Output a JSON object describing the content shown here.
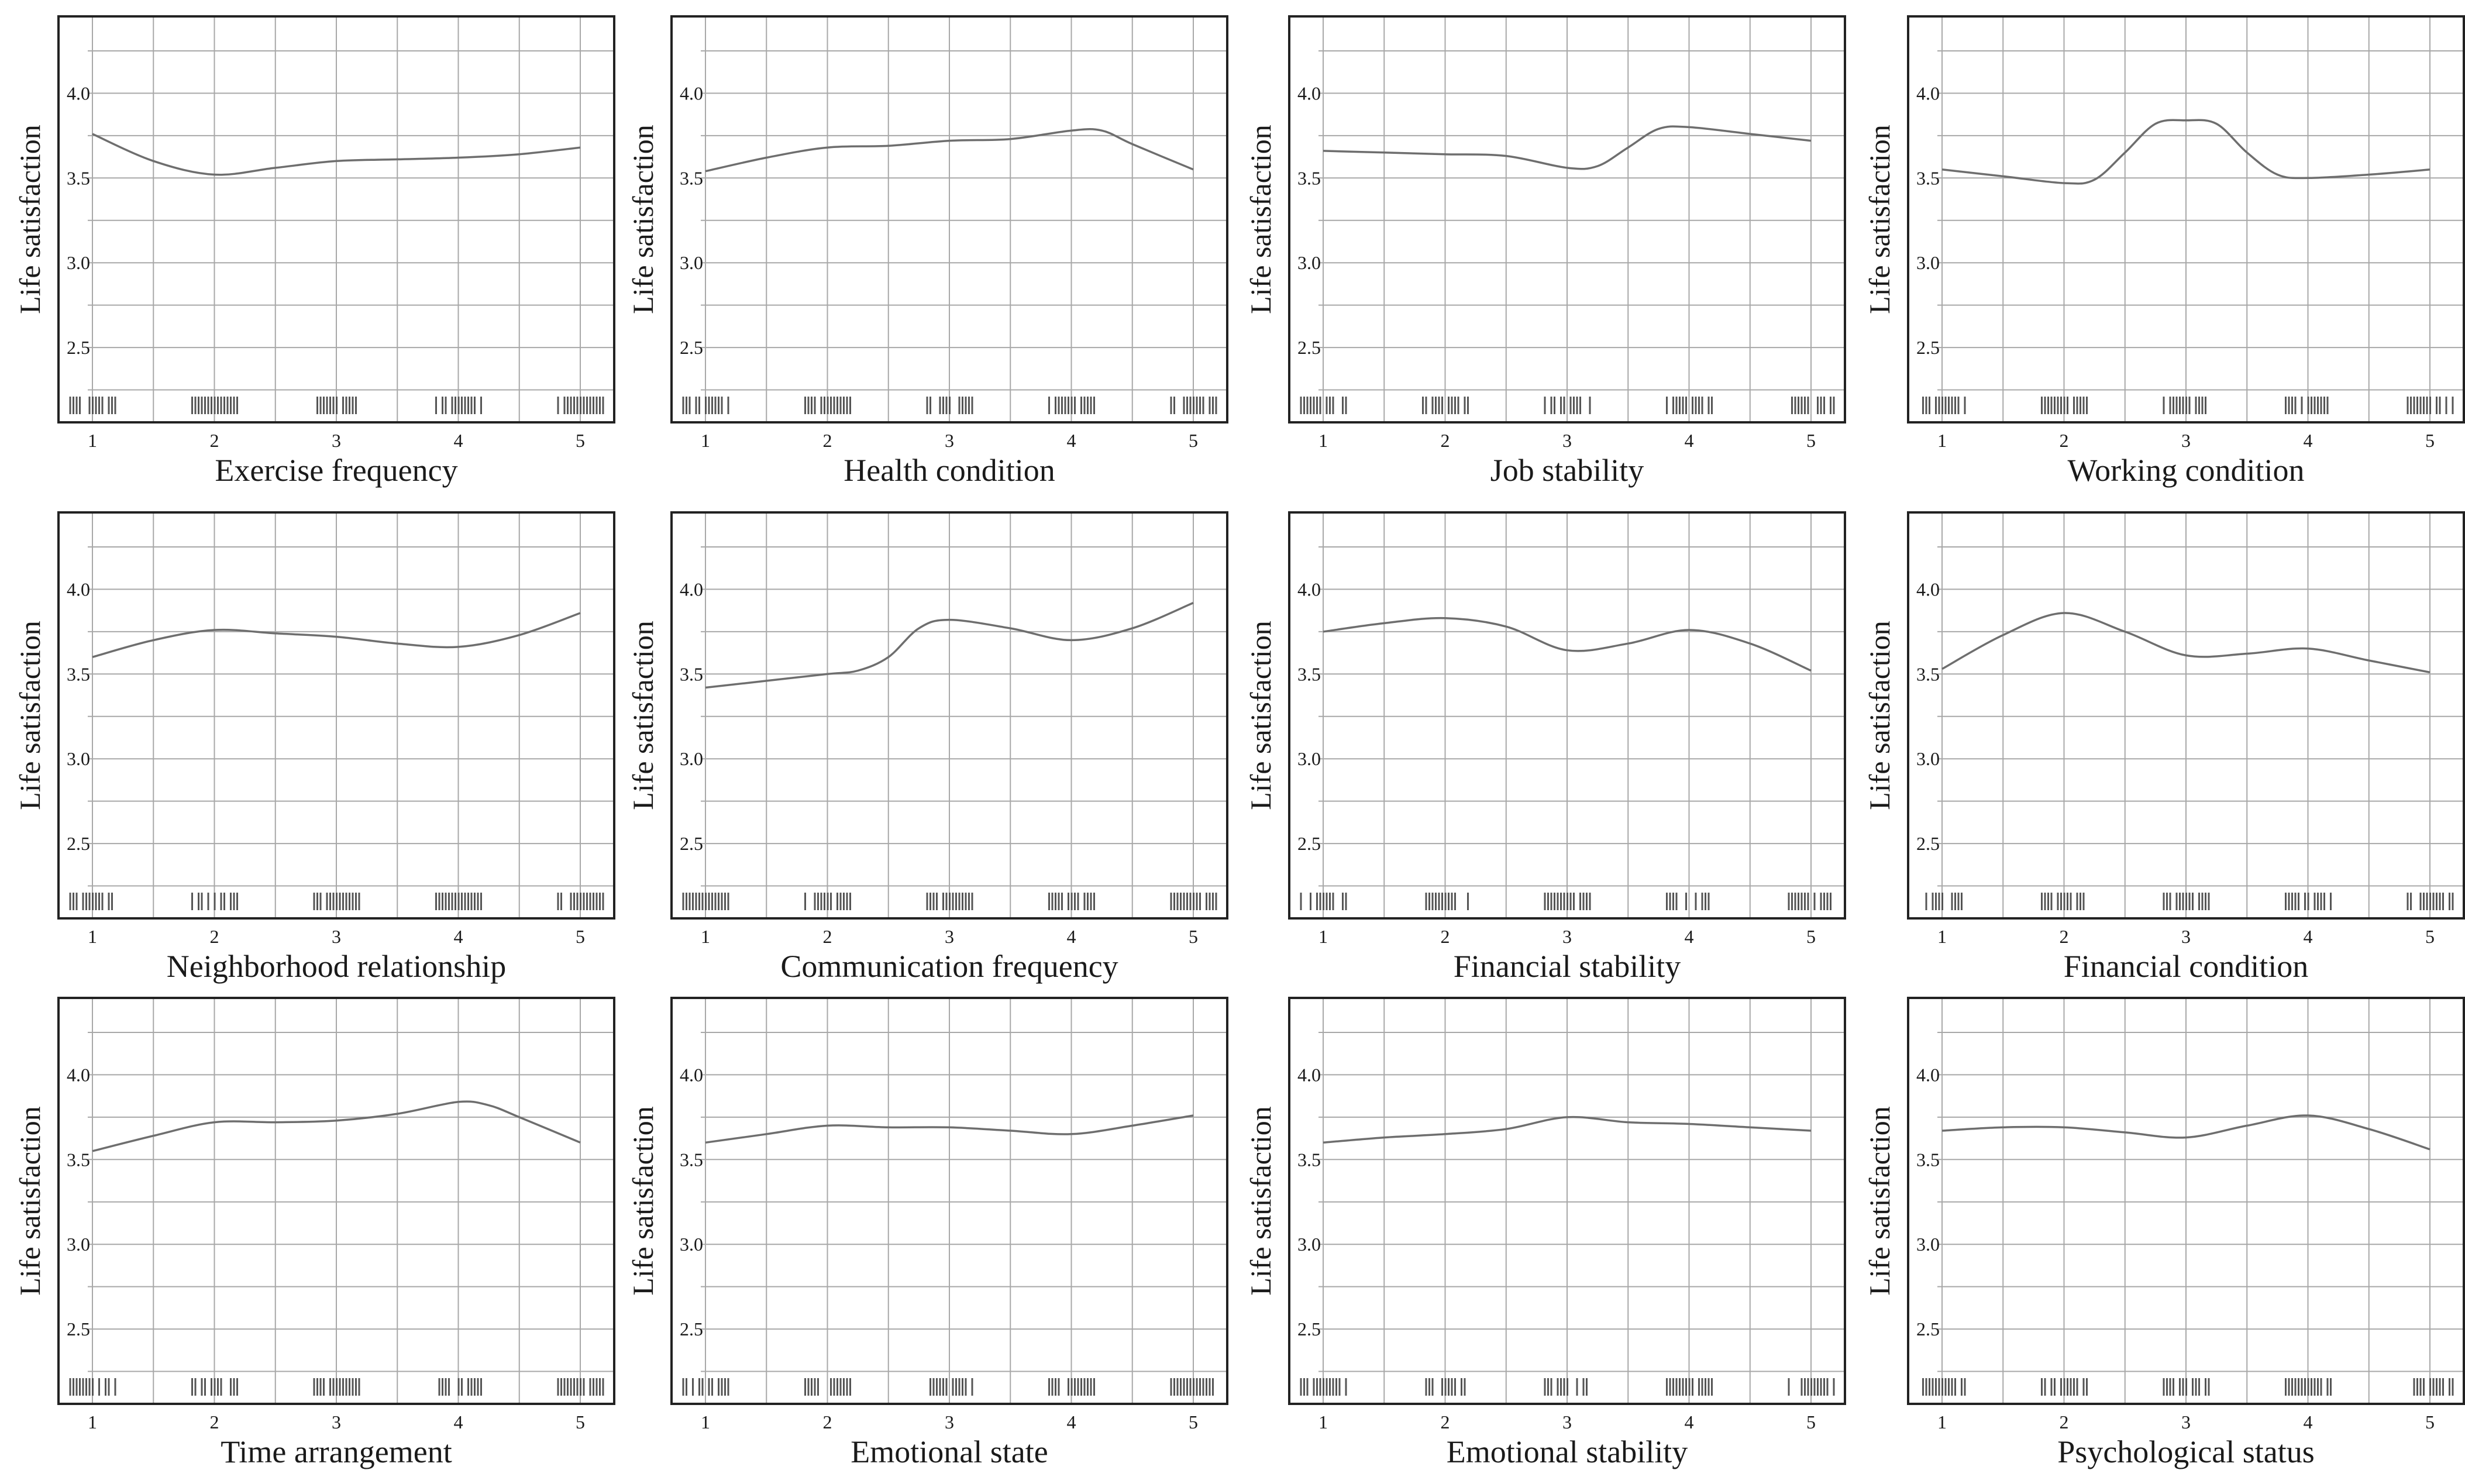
{
  "figure": {
    "y_axis_label": "Life satisfaction",
    "y_ticks": [
      "2.5",
      "3.0",
      "3.5",
      "4.0"
    ],
    "x_ticks": [
      "1",
      "2",
      "3",
      "4",
      "5"
    ],
    "colors": {
      "curve": "#6e6e6e",
      "grid": "#a8a8a8",
      "frame": "#222222",
      "rug": "#555555"
    }
  },
  "chart_data": [
    {
      "type": "line",
      "xlabel": "Exercise frequency",
      "ylabel": "Life satisfaction",
      "xlim": [
        1,
        5
      ],
      "ylim": [
        2.1,
        4.35
      ],
      "x": [
        1,
        1.5,
        2,
        2.5,
        3,
        3.5,
        4,
        4.5,
        5
      ],
      "y": [
        3.76,
        3.6,
        3.52,
        3.56,
        3.6,
        3.61,
        3.62,
        3.64,
        3.68
      ],
      "rug": [
        1,
        2,
        3,
        4,
        5
      ]
    },
    {
      "type": "line",
      "xlabel": "Health condition",
      "ylabel": "Life satisfaction",
      "xlim": [
        1,
        5
      ],
      "ylim": [
        2.1,
        4.35
      ],
      "x": [
        1,
        1.5,
        2,
        2.5,
        3,
        3.5,
        4,
        4.25,
        4.5,
        5
      ],
      "y": [
        3.54,
        3.62,
        3.68,
        3.69,
        3.72,
        3.73,
        3.78,
        3.78,
        3.7,
        3.55
      ],
      "rug": [
        1,
        2,
        3,
        4,
        5
      ]
    },
    {
      "type": "line",
      "xlabel": "Job stability",
      "ylabel": "Life satisfaction",
      "xlim": [
        1,
        5
      ],
      "ylim": [
        2.1,
        4.35
      ],
      "x": [
        1,
        1.5,
        2,
        2.5,
        3,
        3.25,
        3.5,
        3.75,
        4,
        4.5,
        5
      ],
      "y": [
        3.66,
        3.65,
        3.64,
        3.63,
        3.56,
        3.57,
        3.68,
        3.79,
        3.8,
        3.76,
        3.72
      ],
      "rug": [
        1,
        2,
        3,
        4,
        5
      ]
    },
    {
      "type": "line",
      "xlabel": "Working condition",
      "ylabel": "Life satisfaction",
      "xlim": [
        1,
        5
      ],
      "ylim": [
        2.1,
        4.35
      ],
      "x": [
        1,
        1.5,
        2,
        2.25,
        2.5,
        2.75,
        3,
        3.25,
        3.5,
        3.75,
        4,
        4.5,
        5
      ],
      "y": [
        3.55,
        3.51,
        3.47,
        3.49,
        3.65,
        3.82,
        3.84,
        3.82,
        3.65,
        3.52,
        3.5,
        3.52,
        3.55
      ],
      "rug": [
        1,
        2,
        3,
        4,
        5
      ]
    },
    {
      "type": "line",
      "xlabel": "Neighborhood relationship",
      "ylabel": "Life satisfaction",
      "xlim": [
        1,
        5
      ],
      "ylim": [
        2.1,
        4.35
      ],
      "x": [
        1,
        1.5,
        2,
        2.5,
        3,
        3.5,
        4,
        4.5,
        5
      ],
      "y": [
        3.6,
        3.7,
        3.76,
        3.74,
        3.72,
        3.68,
        3.66,
        3.73,
        3.86
      ],
      "rug": [
        1,
        2,
        3,
        4,
        5
      ]
    },
    {
      "type": "line",
      "xlabel": "Communication frequency",
      "ylabel": "Life satisfaction",
      "xlim": [
        1,
        5
      ],
      "ylim": [
        2.1,
        4.35
      ],
      "x": [
        1,
        1.5,
        2,
        2.25,
        2.5,
        2.75,
        3,
        3.5,
        4,
        4.5,
        5
      ],
      "y": [
        3.42,
        3.46,
        3.5,
        3.52,
        3.6,
        3.77,
        3.82,
        3.77,
        3.7,
        3.77,
        3.92
      ],
      "rug": [
        1,
        2,
        3,
        4,
        5
      ]
    },
    {
      "type": "line",
      "xlabel": "Financial stability",
      "ylabel": "Life satisfaction",
      "xlim": [
        1,
        5
      ],
      "ylim": [
        2.1,
        4.35
      ],
      "x": [
        1,
        1.5,
        2,
        2.5,
        3,
        3.5,
        4,
        4.5,
        5
      ],
      "y": [
        3.75,
        3.8,
        3.83,
        3.78,
        3.64,
        3.68,
        3.76,
        3.68,
        3.52
      ],
      "rug": [
        1,
        2,
        3,
        4,
        5
      ]
    },
    {
      "type": "line",
      "xlabel": "Financial condition",
      "ylabel": "Life satisfaction",
      "xlim": [
        1,
        5
      ],
      "ylim": [
        2.1,
        4.35
      ],
      "x": [
        1,
        1.5,
        2,
        2.5,
        3,
        3.5,
        4,
        4.5,
        5
      ],
      "y": [
        3.53,
        3.73,
        3.86,
        3.75,
        3.61,
        3.62,
        3.65,
        3.58,
        3.51
      ],
      "rug": [
        1,
        2,
        3,
        4,
        5
      ]
    },
    {
      "type": "line",
      "xlabel": "Time arrangement",
      "ylabel": "Life satisfaction",
      "xlim": [
        1,
        5
      ],
      "ylim": [
        2.1,
        4.35
      ],
      "x": [
        1,
        1.5,
        2,
        2.5,
        3,
        3.5,
        4,
        4.25,
        4.5,
        5
      ],
      "y": [
        3.55,
        3.64,
        3.72,
        3.72,
        3.73,
        3.77,
        3.84,
        3.82,
        3.75,
        3.6
      ],
      "rug": [
        1,
        2,
        3,
        4,
        5
      ]
    },
    {
      "type": "line",
      "xlabel": "Emotional state",
      "ylabel": "Life satisfaction",
      "xlim": [
        1,
        5
      ],
      "ylim": [
        2.1,
        4.35
      ],
      "x": [
        1,
        1.5,
        2,
        2.5,
        3,
        3.5,
        4,
        4.5,
        5
      ],
      "y": [
        3.6,
        3.65,
        3.7,
        3.69,
        3.69,
        3.67,
        3.65,
        3.7,
        3.76
      ],
      "rug": [
        1,
        2,
        3,
        4,
        5
      ]
    },
    {
      "type": "line",
      "xlabel": "Emotional stability",
      "ylabel": "Life satisfaction",
      "xlim": [
        1,
        5
      ],
      "ylim": [
        2.1,
        4.35
      ],
      "x": [
        1,
        1.5,
        2,
        2.5,
        3,
        3.5,
        4,
        4.5,
        5
      ],
      "y": [
        3.6,
        3.63,
        3.65,
        3.68,
        3.75,
        3.72,
        3.71,
        3.69,
        3.67
      ],
      "rug": [
        1,
        2,
        3,
        4,
        5
      ]
    },
    {
      "type": "line",
      "xlabel": "Psychological status",
      "ylabel": "Life satisfaction",
      "xlim": [
        1,
        5
      ],
      "ylim": [
        2.1,
        4.35
      ],
      "x": [
        1,
        1.5,
        2,
        2.5,
        3,
        3.5,
        4,
        4.5,
        5
      ],
      "y": [
        3.67,
        3.69,
        3.69,
        3.66,
        3.63,
        3.7,
        3.76,
        3.68,
        3.56
      ],
      "rug": [
        1,
        2,
        3,
        4,
        5
      ]
    }
  ]
}
